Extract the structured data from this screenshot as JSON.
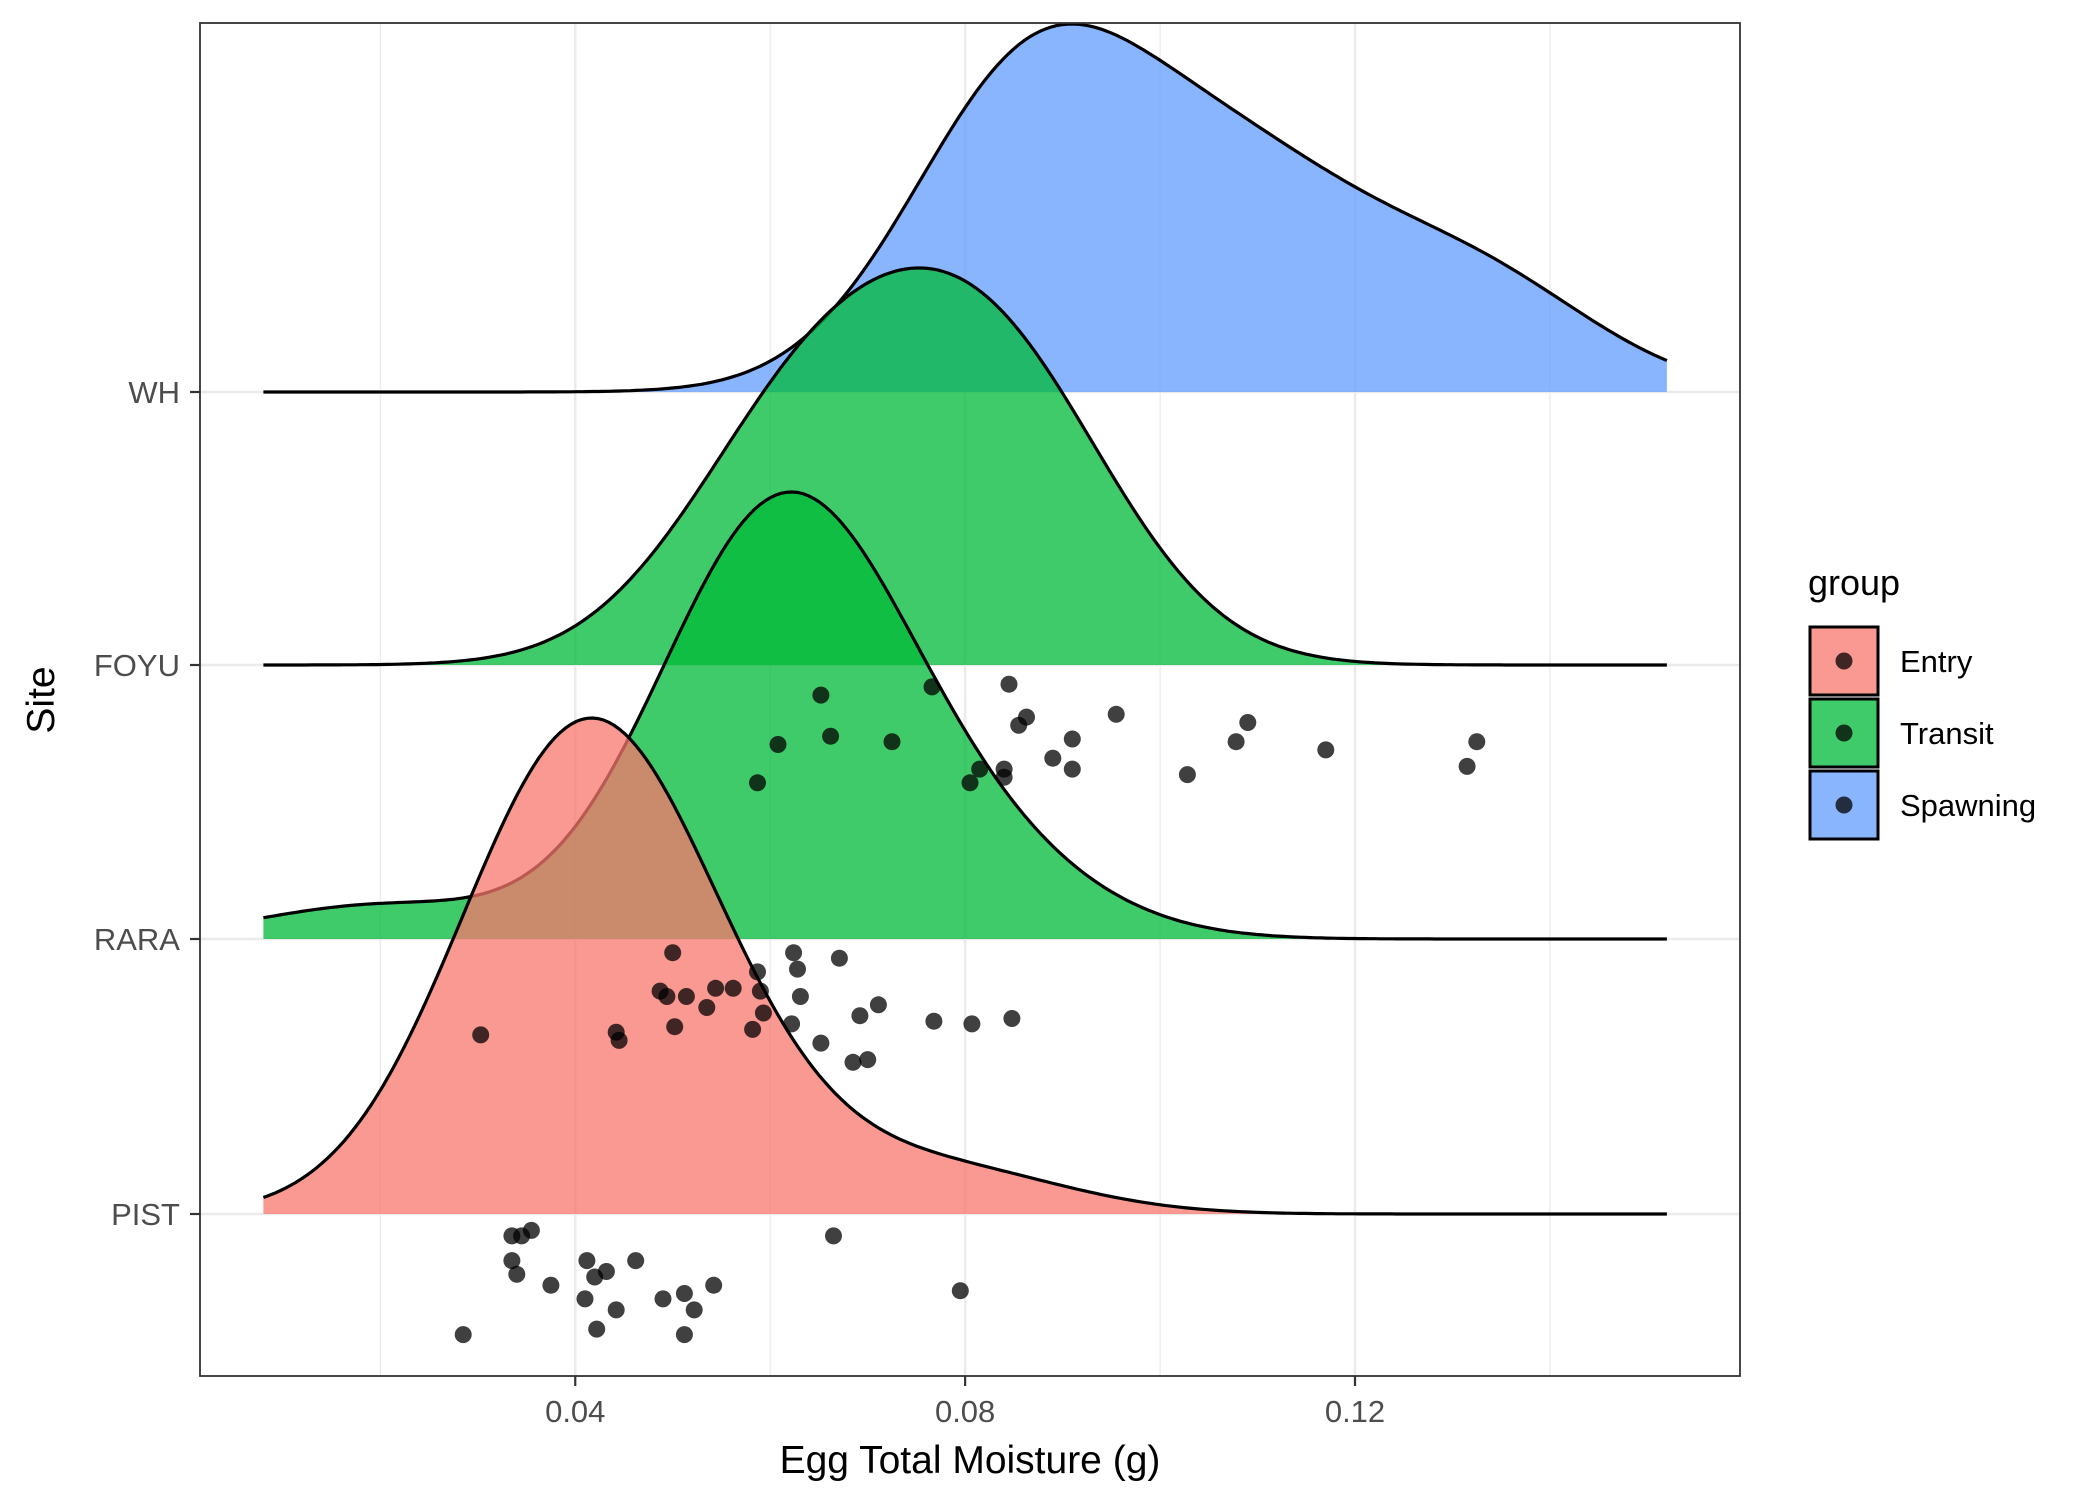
{
  "chart_data": {
    "type": "ridgeline",
    "xlabel": "Egg Total Moisture (g)",
    "ylabel": "Site",
    "xlim": [
      0.0015,
      0.1595
    ],
    "x_ticks": [
      0.04,
      0.08,
      0.12
    ],
    "x_tick_labels": [
      "0.04",
      "0.08",
      "0.12"
    ],
    "sites": [
      "PIST",
      "RARA",
      "FOYU",
      "WH"
    ],
    "grid": true,
    "legend": {
      "title": "group",
      "position": "right",
      "items": [
        {
          "label": "Entry",
          "color": "#F8766D"
        },
        {
          "label": "Transit",
          "color": "#00BA38"
        },
        {
          "label": "Spawning",
          "color": "#619CFF"
        }
      ]
    },
    "density_range": [
      0.008,
      0.152
    ],
    "series": [
      {
        "site": "PIST",
        "group": "Entry",
        "color": "#F8766D",
        "density_peaks": [
          [
            0.04,
            1.0
          ],
          [
            0.052,
            0.22
          ],
          [
            0.078,
            0.1
          ]
        ],
        "points": [
          0.0285,
          0.0335,
          0.0355,
          0.0345,
          0.034,
          0.0335,
          0.0375,
          0.0412,
          0.042,
          0.0432,
          0.0462,
          0.041,
          0.0442,
          0.049,
          0.0512,
          0.0522,
          0.0542,
          0.0422,
          0.0512,
          0.0665,
          0.0795
        ],
        "point_offsets": [
          0.44,
          0.08,
          0.06,
          0.08,
          0.22,
          0.17,
          0.26,
          0.17,
          0.23,
          0.21,
          0.17,
          0.31,
          0.35,
          0.31,
          0.29,
          0.35,
          0.26,
          0.42,
          0.44,
          0.08,
          0.28
        ]
      },
      {
        "site": "RARA",
        "group": "Transit",
        "color": "#00BA38",
        "density_peaks": [
          [
            0.061,
            1.0
          ],
          [
            0.02,
            0.08
          ],
          [
            0.08,
            0.18
          ]
        ],
        "points": [
          0.0303,
          0.0442,
          0.0445,
          0.05,
          0.0502,
          0.0487,
          0.0494,
          0.0514,
          0.0535,
          0.0544,
          0.0562,
          0.0587,
          0.059,
          0.0593,
          0.0582,
          0.0624,
          0.0628,
          0.0631,
          0.0622,
          0.0671,
          0.0652,
          0.0692,
          0.0711,
          0.0685,
          0.07,
          0.0768,
          0.0807,
          0.0848
        ],
        "point_offsets": [
          0.35,
          0.34,
          0.37,
          0.05,
          0.32,
          0.19,
          0.21,
          0.21,
          0.25,
          0.18,
          0.18,
          0.12,
          0.19,
          0.27,
          0.33,
          0.05,
          0.11,
          0.21,
          0.31,
          0.07,
          0.38,
          0.28,
          0.24,
          0.45,
          0.44,
          0.3,
          0.31,
          0.29
        ],
        "points_upper": [
          0.0652,
          0.0608,
          0.0662,
          0.0587,
          0.0766,
          0.0845,
          0.091,
          0.0805,
          0.084
        ],
        "point_offsets_upper": [
          0.11,
          0.29,
          0.26,
          0.43,
          0.08,
          0.07,
          0.27,
          0.43,
          0.41
        ]
      },
      {
        "site": "FOYU",
        "group": "Transit",
        "color": "#00BA38",
        "density_peaks": [
          [
            0.064,
            0.85
          ],
          [
            0.083,
            1.0
          ]
        ],
        "points": [
          0.0725,
          0.0863,
          0.0855,
          0.089,
          0.0815,
          0.084,
          0.091,
          0.0955,
          0.109,
          0.1078,
          0.1028,
          0.117,
          0.1325,
          0.1315
        ],
        "point_offsets": [
          0.28,
          0.19,
          0.22,
          0.34,
          0.38,
          0.38,
          0.38,
          0.18,
          0.21,
          0.28,
          0.4,
          0.31,
          0.28,
          0.37
        ]
      },
      {
        "site": "WH",
        "group": "Spawning",
        "color": "#619CFF",
        "density_peaks": [
          [
            0.087,
            1.0
          ],
          [
            0.109,
            0.58
          ],
          [
            0.132,
            0.35
          ]
        ],
        "points": [],
        "point_offsets": []
      }
    ]
  }
}
